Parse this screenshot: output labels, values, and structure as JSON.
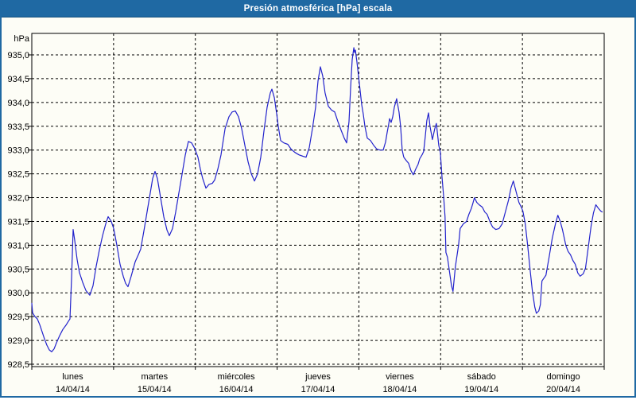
{
  "window": {
    "title": "Presión atmosférica [hPa] escala"
  },
  "colors": {
    "titlebar_bg": "#1f69a3",
    "titlebar_text": "#ffffff",
    "frame_border": "#1f69a3",
    "panel_bg": "#fdfdf6",
    "plot_border": "#000000",
    "grid_color": "#000000",
    "line_color": "#2222cc",
    "label_color": "#000000"
  },
  "chart_data": {
    "type": "line",
    "title": "Presión atmosférica [hPa] escala",
    "ylabel": "hPa",
    "ylim": [
      928.45,
      935.45
    ],
    "ytick_step": 0.5,
    "grid": "dashed",
    "legend": "none",
    "yticks": [
      {
        "value": 935.0,
        "label": "935,0"
      },
      {
        "value": 934.5,
        "label": "934,5"
      },
      {
        "value": 934.0,
        "label": "934,0"
      },
      {
        "value": 933.5,
        "label": "933,5"
      },
      {
        "value": 933.0,
        "label": "933,0"
      },
      {
        "value": 932.5,
        "label": "932,5"
      },
      {
        "value": 932.0,
        "label": "932,0"
      },
      {
        "value": 931.5,
        "label": "931,5"
      },
      {
        "value": 931.0,
        "label": "931,0"
      },
      {
        "value": 930.5,
        "label": "930,5"
      },
      {
        "value": 930.0,
        "label": "930,0"
      },
      {
        "value": 929.5,
        "label": "929,5"
      },
      {
        "value": 929.0,
        "label": "929,0"
      },
      {
        "value": 928.5,
        "label": "928,5"
      }
    ],
    "x_range_days": [
      0,
      7
    ],
    "x_categories": [
      {
        "name": "lunes",
        "date": "14/04/14"
      },
      {
        "name": "martes",
        "date": "15/04/14"
      },
      {
        "name": "miércoles",
        "date": "16/04/14"
      },
      {
        "name": "jueves",
        "date": "17/04/14"
      },
      {
        "name": "viernes",
        "date": "18/04/14"
      },
      {
        "name": "sábado",
        "date": "19/04/14"
      },
      {
        "name": "domingo",
        "date": "20/04/14"
      }
    ],
    "series": [
      {
        "name": "Presión atmosférica",
        "unit": "hPa",
        "color": "#2222cc",
        "points": [
          [
            0,
            929.78
          ],
          [
            0.01,
            929.58
          ],
          [
            0.039,
            929.5
          ],
          [
            0.068,
            929.45
          ],
          [
            0.097,
            929.33
          ],
          [
            0.126,
            929.18
          ],
          [
            0.156,
            929.03
          ],
          [
            0.185,
            928.9
          ],
          [
            0.214,
            928.8
          ],
          [
            0.243,
            928.76
          ],
          [
            0.272,
            928.82
          ],
          [
            0.301,
            928.95
          ],
          [
            0.34,
            929.1
          ],
          [
            0.379,
            929.23
          ],
          [
            0.418,
            929.32
          ],
          [
            0.447,
            929.4
          ],
          [
            0.467,
            929.45
          ],
          [
            0.486,
            930.3
          ],
          [
            0.506,
            931.33
          ],
          [
            0.525,
            931.1
          ],
          [
            0.554,
            930.7
          ],
          [
            0.583,
            930.42
          ],
          [
            0.622,
            930.22
          ],
          [
            0.661,
            930.05
          ],
          [
            0.71,
            929.95
          ],
          [
            0.749,
            930.15
          ],
          [
            0.787,
            930.55
          ],
          [
            0.826,
            930.9
          ],
          [
            0.865,
            931.2
          ],
          [
            0.904,
            931.45
          ],
          [
            0.933,
            931.6
          ],
          [
            0.972,
            931.5
          ],
          [
            1.001,
            931.35
          ],
          [
            1.04,
            931.0
          ],
          [
            1.079,
            930.6
          ],
          [
            1.118,
            930.35
          ],
          [
            1.147,
            930.2
          ],
          [
            1.176,
            930.13
          ],
          [
            1.215,
            930.35
          ],
          [
            1.264,
            930.65
          ],
          [
            1.303,
            930.8
          ],
          [
            1.332,
            930.92
          ],
          [
            1.371,
            931.3
          ],
          [
            1.41,
            931.7
          ],
          [
            1.449,
            932.1
          ],
          [
            1.478,
            932.4
          ],
          [
            1.507,
            932.55
          ],
          [
            1.536,
            932.4
          ],
          [
            1.575,
            932.0
          ],
          [
            1.614,
            931.6
          ],
          [
            1.653,
            931.32
          ],
          [
            1.682,
            931.2
          ],
          [
            1.721,
            931.35
          ],
          [
            1.76,
            931.7
          ],
          [
            1.799,
            932.1
          ],
          [
            1.838,
            932.5
          ],
          [
            1.877,
            932.9
          ],
          [
            1.915,
            933.18
          ],
          [
            1.954,
            933.15
          ],
          [
            1.993,
            933.03
          ],
          [
            2.032,
            932.85
          ],
          [
            2.061,
            932.6
          ],
          [
            2.09,
            932.4
          ],
          [
            2.129,
            932.2
          ],
          [
            2.168,
            932.28
          ],
          [
            2.207,
            932.3
          ],
          [
            2.236,
            932.37
          ],
          [
            2.275,
            932.6
          ],
          [
            2.314,
            932.9
          ],
          [
            2.363,
            933.45
          ],
          [
            2.411,
            933.7
          ],
          [
            2.45,
            933.8
          ],
          [
            2.489,
            933.82
          ],
          [
            2.528,
            933.7
          ],
          [
            2.567,
            933.45
          ],
          [
            2.606,
            933.1
          ],
          [
            2.645,
            932.75
          ],
          [
            2.684,
            932.5
          ],
          [
            2.723,
            932.35
          ],
          [
            2.761,
            932.5
          ],
          [
            2.8,
            932.85
          ],
          [
            2.839,
            933.4
          ],
          [
            2.878,
            933.9
          ],
          [
            2.917,
            934.2
          ],
          [
            2.936,
            934.28
          ],
          [
            2.966,
            934.1
          ],
          [
            2.995,
            933.75
          ],
          [
            3.014,
            933.5
          ],
          [
            3.043,
            933.2
          ],
          [
            3.082,
            933.15
          ],
          [
            3.131,
            933.12
          ],
          [
            3.17,
            933.02
          ],
          [
            3.218,
            932.95
          ],
          [
            3.267,
            932.9
          ],
          [
            3.316,
            932.87
          ],
          [
            3.354,
            932.85
          ],
          [
            3.393,
            933.05
          ],
          [
            3.432,
            933.45
          ],
          [
            3.471,
            933.9
          ],
          [
            3.5,
            934.45
          ],
          [
            3.529,
            934.75
          ],
          [
            3.558,
            934.55
          ],
          [
            3.587,
            934.2
          ],
          [
            3.626,
            933.92
          ],
          [
            3.665,
            933.84
          ],
          [
            3.704,
            933.8
          ],
          [
            3.743,
            933.6
          ],
          [
            3.782,
            933.42
          ],
          [
            3.821,
            933.25
          ],
          [
            3.85,
            933.15
          ],
          [
            3.879,
            933.6
          ],
          [
            3.899,
            934.3
          ],
          [
            3.918,
            934.9
          ],
          [
            3.938,
            935.15
          ],
          [
            3.947,
            935.05
          ],
          [
            3.957,
            935.1
          ],
          [
            3.976,
            934.85
          ],
          [
            3.996,
            934.55
          ],
          [
            4.015,
            934.25
          ],
          [
            4.035,
            933.95
          ],
          [
            4.054,
            933.75
          ],
          [
            4.074,
            933.5
          ],
          [
            4.103,
            933.25
          ],
          [
            4.142,
            933.2
          ],
          [
            4.181,
            933.1
          ],
          [
            4.219,
            933.02
          ],
          [
            4.258,
            933.0
          ],
          [
            4.297,
            933.0
          ],
          [
            4.326,
            933.17
          ],
          [
            4.346,
            933.37
          ],
          [
            4.365,
            933.55
          ],
          [
            4.375,
            933.66
          ],
          [
            4.394,
            933.58
          ],
          [
            4.414,
            933.7
          ],
          [
            4.433,
            933.9
          ],
          [
            4.462,
            934.08
          ],
          [
            4.491,
            933.8
          ],
          [
            4.51,
            933.5
          ],
          [
            4.53,
            933.0
          ],
          [
            4.549,
            932.85
          ],
          [
            4.579,
            932.78
          ],
          [
            4.608,
            932.72
          ],
          [
            4.637,
            932.57
          ],
          [
            4.666,
            932.48
          ],
          [
            4.695,
            932.6
          ],
          [
            4.724,
            932.7
          ],
          [
            4.744,
            932.82
          ],
          [
            4.773,
            932.9
          ],
          [
            4.792,
            932.97
          ],
          [
            4.812,
            933.28
          ],
          [
            4.831,
            933.62
          ],
          [
            4.851,
            933.78
          ],
          [
            4.87,
            933.5
          ],
          [
            4.899,
            933.22
          ],
          [
            4.928,
            933.45
          ],
          [
            4.948,
            933.56
          ],
          [
            4.977,
            933.1
          ],
          [
            4.996,
            932.95
          ],
          [
            5.016,
            932.45
          ],
          [
            5.035,
            932.05
          ],
          [
            5.054,
            931.6
          ],
          [
            5.064,
            930.85
          ],
          [
            5.083,
            930.75
          ],
          [
            5.112,
            930.4
          ],
          [
            5.132,
            930.15
          ],
          [
            5.151,
            930.03
          ],
          [
            5.18,
            930.55
          ],
          [
            5.219,
            931.0
          ],
          [
            5.238,
            931.35
          ],
          [
            5.277,
            931.45
          ],
          [
            5.316,
            931.5
          ],
          [
            5.345,
            931.65
          ],
          [
            5.374,
            931.77
          ],
          [
            5.394,
            931.88
          ],
          [
            5.413,
            932.0
          ],
          [
            5.442,
            931.9
          ],
          [
            5.471,
            931.85
          ],
          [
            5.51,
            931.8
          ],
          [
            5.539,
            931.7
          ],
          [
            5.568,
            931.65
          ],
          [
            5.607,
            931.48
          ],
          [
            5.636,
            931.38
          ],
          [
            5.675,
            931.33
          ],
          [
            5.714,
            931.35
          ],
          [
            5.753,
            931.45
          ],
          [
            5.792,
            931.7
          ],
          [
            5.83,
            931.95
          ],
          [
            5.86,
            932.2
          ],
          [
            5.889,
            932.35
          ],
          [
            5.927,
            932.1
          ],
          [
            5.957,
            931.9
          ],
          [
            5.986,
            931.8
          ],
          [
            6.005,
            931.72
          ],
          [
            6.035,
            931.45
          ],
          [
            6.064,
            931.0
          ],
          [
            6.093,
            930.5
          ],
          [
            6.122,
            930.03
          ],
          [
            6.151,
            929.7
          ],
          [
            6.171,
            929.57
          ],
          [
            6.2,
            929.62
          ],
          [
            6.219,
            929.75
          ],
          [
            6.239,
            930.25
          ],
          [
            6.287,
            930.37
          ],
          [
            6.326,
            930.75
          ],
          [
            6.365,
            931.15
          ],
          [
            6.404,
            931.45
          ],
          [
            6.433,
            931.63
          ],
          [
            6.462,
            931.5
          ],
          [
            6.491,
            931.32
          ],
          [
            6.53,
            931.0
          ],
          [
            6.559,
            930.87
          ],
          [
            6.588,
            930.8
          ],
          [
            6.617,
            930.68
          ],
          [
            6.646,
            930.6
          ],
          [
            6.676,
            930.42
          ],
          [
            6.705,
            930.35
          ],
          [
            6.743,
            930.4
          ],
          [
            6.772,
            930.52
          ],
          [
            6.801,
            930.9
          ],
          [
            6.84,
            931.4
          ],
          [
            6.869,
            931.68
          ],
          [
            6.898,
            931.85
          ],
          [
            6.927,
            931.78
          ],
          [
            6.956,
            931.72
          ],
          [
            6.976,
            931.7
          ]
        ]
      }
    ]
  }
}
